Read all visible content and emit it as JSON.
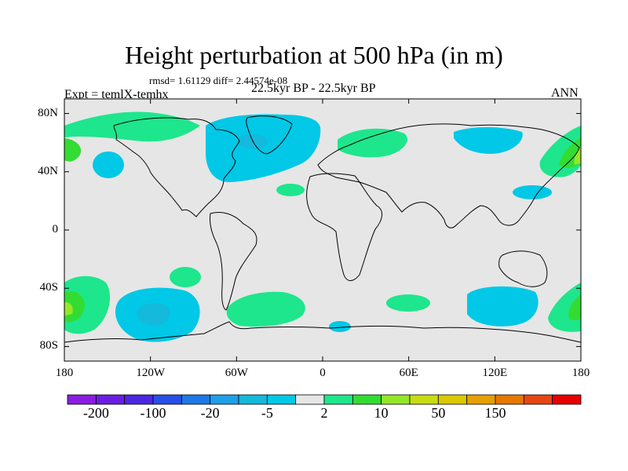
{
  "title": "Height perturbation at 500 hPa (in m)",
  "stats": "rmsd= 1.61129 diff= 2.44574e-08",
  "subtitle": "22.5kyr BP - 22.5kyr BP",
  "experiment": "Expt = temlX-temhx",
  "season": "ANN",
  "y_ticks": [
    {
      "label": "80N",
      "lat": 80
    },
    {
      "label": "40N",
      "lat": 40
    },
    {
      "label": "0",
      "lat": 0
    },
    {
      "label": "40S",
      "lat": -40
    },
    {
      "label": "80S",
      "lat": -80
    }
  ],
  "x_ticks": [
    {
      "label": "180",
      "lon": -180
    },
    {
      "label": "120W",
      "lon": -120
    },
    {
      "label": "60W",
      "lon": -60
    },
    {
      "label": "0",
      "lon": 0
    },
    {
      "label": "60E",
      "lon": 60
    },
    {
      "label": "120E",
      "lon": 120
    },
    {
      "label": "180",
      "lon": 180
    }
  ],
  "colorbar": {
    "colors": [
      "#8a1ee0",
      "#6c1ee0",
      "#4b28e0",
      "#2850e6",
      "#1e78e6",
      "#1ea0e6",
      "#14b9dc",
      "#00c8e6",
      "#e6e6e6",
      "#1ee68c",
      "#32dc32",
      "#96e628",
      "#c8dc14",
      "#dcc800",
      "#e6a000",
      "#e67800",
      "#e64614",
      "#e60000"
    ],
    "labels": [
      {
        "text": "-200",
        "boundary": 1
      },
      {
        "text": "-100",
        "boundary": 3
      },
      {
        "text": "-20",
        "boundary": 5
      },
      {
        "text": "-5",
        "boundary": 7
      },
      {
        "text": "2",
        "boundary": 9
      },
      {
        "text": "10",
        "boundary": 11
      },
      {
        "text": "50",
        "boundary": 13
      },
      {
        "text": "150",
        "boundary": 15
      }
    ]
  }
}
